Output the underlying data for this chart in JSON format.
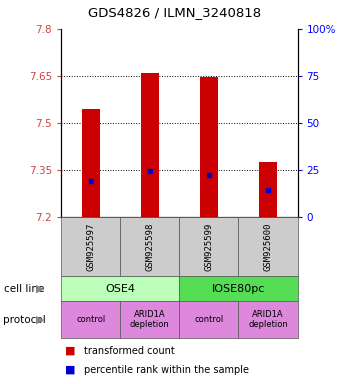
{
  "title": "GDS4826 / ILMN_3240818",
  "samples": [
    "GSM925597",
    "GSM925598",
    "GSM925599",
    "GSM925600"
  ],
  "bar_bottoms": [
    7.2,
    7.2,
    7.2,
    7.2
  ],
  "bar_tops": [
    7.545,
    7.66,
    7.645,
    7.375
  ],
  "blue_dot_values": [
    7.315,
    7.348,
    7.335,
    7.285
  ],
  "ylim": [
    7.2,
    7.8
  ],
  "yticks_left": [
    7.2,
    7.35,
    7.5,
    7.65,
    7.8
  ],
  "yticks_right": [
    0,
    25,
    50,
    75,
    100
  ],
  "ytick_labels_right": [
    "0",
    "25",
    "50",
    "75",
    "100%"
  ],
  "bar_color": "#cc0000",
  "dot_color": "#0000cc",
  "cell_line_labels": [
    "OSE4",
    "IOSE80pc"
  ],
  "cell_line_colors": [
    "#bbffbb",
    "#55dd55"
  ],
  "cell_line_spans": [
    [
      0,
      2
    ],
    [
      2,
      4
    ]
  ],
  "protocol_labels": [
    "control",
    "ARID1A\ndepletion",
    "control",
    "ARID1A\ndepletion"
  ],
  "protocol_color": "#dd88dd",
  "sample_box_color": "#cccccc",
  "legend_red_label": "transformed count",
  "legend_blue_label": "percentile rank within the sample",
  "cell_line_row_label": "cell line",
  "protocol_row_label": "protocol",
  "bar_width": 0.3
}
